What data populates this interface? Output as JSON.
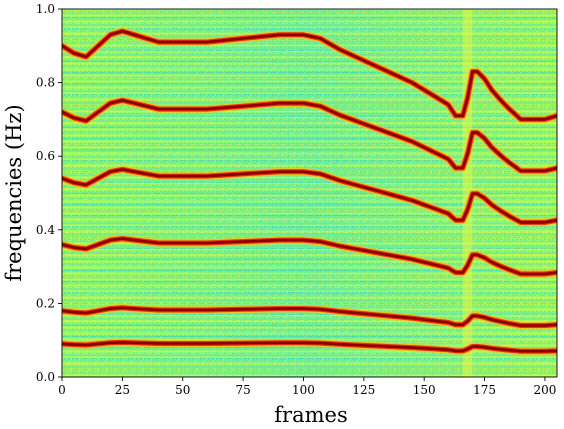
{
  "chart_data": {
    "type": "heatmap",
    "subtype": "spectrogram",
    "xlabel": "frames",
    "ylabel": "frequencies (Hz)",
    "xlim": [
      0,
      205
    ],
    "ylim": [
      0.0,
      1.0
    ],
    "xticks": [
      0,
      25,
      50,
      75,
      100,
      125,
      150,
      175,
      200
    ],
    "yticks": [
      0.0,
      0.2,
      0.4,
      0.6,
      0.8,
      1.0
    ],
    "colormap": "jet",
    "background_level": "noise (green/cyan/yellow)",
    "series": [
      {
        "x": [
          0,
          5,
          10,
          15,
          20,
          25,
          30,
          40,
          50,
          60,
          75,
          90,
          100,
          107,
          115,
          125,
          135,
          145,
          150,
          155,
          160,
          163,
          166,
          168,
          170,
          172,
          175,
          178,
          182,
          185,
          190,
          200,
          205
        ],
        "y": [
          0.09,
          0.088,
          0.087,
          0.09,
          0.093,
          0.094,
          0.093,
          0.091,
          0.091,
          0.091,
          0.092,
          0.093,
          0.093,
          0.092,
          0.089,
          0.086,
          0.083,
          0.08,
          0.078,
          0.076,
          0.074,
          0.071,
          0.071,
          0.076,
          0.083,
          0.083,
          0.081,
          0.078,
          0.075,
          0.073,
          0.07,
          0.07,
          0.071
        ]
      },
      {
        "x": [
          0,
          5,
          10,
          15,
          20,
          25,
          30,
          40,
          50,
          60,
          75,
          90,
          100,
          107,
          115,
          125,
          135,
          145,
          150,
          155,
          160,
          163,
          166,
          168,
          170,
          172,
          175,
          178,
          182,
          185,
          190,
          200,
          205
        ],
        "y": [
          0.18,
          0.176,
          0.174,
          0.18,
          0.186,
          0.188,
          0.186,
          0.182,
          0.182,
          0.182,
          0.184,
          0.186,
          0.186,
          0.184,
          0.178,
          0.172,
          0.166,
          0.16,
          0.156,
          0.152,
          0.148,
          0.142,
          0.142,
          0.152,
          0.166,
          0.166,
          0.162,
          0.156,
          0.15,
          0.146,
          0.14,
          0.14,
          0.142
        ]
      },
      {
        "x": [
          0,
          5,
          10,
          15,
          20,
          25,
          30,
          40,
          50,
          60,
          75,
          90,
          100,
          107,
          115,
          125,
          135,
          145,
          150,
          155,
          160,
          163,
          166,
          168,
          170,
          172,
          175,
          178,
          182,
          185,
          190,
          200,
          205
        ],
        "y": [
          0.36,
          0.352,
          0.348,
          0.36,
          0.372,
          0.376,
          0.372,
          0.364,
          0.364,
          0.364,
          0.368,
          0.372,
          0.372,
          0.368,
          0.356,
          0.344,
          0.332,
          0.32,
          0.312,
          0.304,
          0.296,
          0.284,
          0.284,
          0.304,
          0.332,
          0.332,
          0.324,
          0.312,
          0.3,
          0.292,
          0.28,
          0.28,
          0.284
        ]
      },
      {
        "x": [
          0,
          5,
          10,
          15,
          20,
          25,
          30,
          40,
          50,
          60,
          75,
          90,
          100,
          107,
          115,
          125,
          135,
          145,
          150,
          155,
          160,
          163,
          166,
          168,
          170,
          172,
          175,
          178,
          182,
          185,
          190,
          200,
          205
        ],
        "y": [
          0.54,
          0.528,
          0.522,
          0.54,
          0.558,
          0.564,
          0.558,
          0.546,
          0.546,
          0.546,
          0.552,
          0.558,
          0.558,
          0.552,
          0.534,
          0.516,
          0.498,
          0.48,
          0.468,
          0.456,
          0.444,
          0.426,
          0.426,
          0.456,
          0.498,
          0.498,
          0.486,
          0.468,
          0.45,
          0.438,
          0.42,
          0.42,
          0.426
        ]
      },
      {
        "x": [
          0,
          5,
          10,
          15,
          20,
          25,
          30,
          40,
          50,
          60,
          75,
          90,
          100,
          107,
          115,
          125,
          135,
          145,
          150,
          155,
          160,
          163,
          166,
          168,
          170,
          172,
          175,
          178,
          182,
          185,
          190,
          200,
          205
        ],
        "y": [
          0.72,
          0.704,
          0.696,
          0.72,
          0.744,
          0.752,
          0.744,
          0.728,
          0.728,
          0.728,
          0.736,
          0.744,
          0.744,
          0.736,
          0.712,
          0.688,
          0.664,
          0.64,
          0.624,
          0.608,
          0.592,
          0.568,
          0.568,
          0.608,
          0.664,
          0.664,
          0.648,
          0.624,
          0.6,
          0.584,
          0.56,
          0.56,
          0.568
        ]
      },
      {
        "x": [
          0,
          5,
          10,
          15,
          20,
          25,
          30,
          40,
          50,
          60,
          75,
          90,
          100,
          107,
          115,
          125,
          135,
          145,
          150,
          155,
          160,
          163,
          166,
          168,
          170,
          172,
          175,
          178,
          182,
          185,
          190,
          200,
          205
        ],
        "y": [
          0.9,
          0.88,
          0.87,
          0.9,
          0.93,
          0.94,
          0.93,
          0.91,
          0.91,
          0.91,
          0.92,
          0.93,
          0.93,
          0.92,
          0.89,
          0.86,
          0.83,
          0.8,
          0.78,
          0.76,
          0.74,
          0.71,
          0.71,
          0.76,
          0.83,
          0.83,
          0.81,
          0.78,
          0.75,
          0.73,
          0.7,
          0.7,
          0.71
        ]
      }
    ]
  }
}
